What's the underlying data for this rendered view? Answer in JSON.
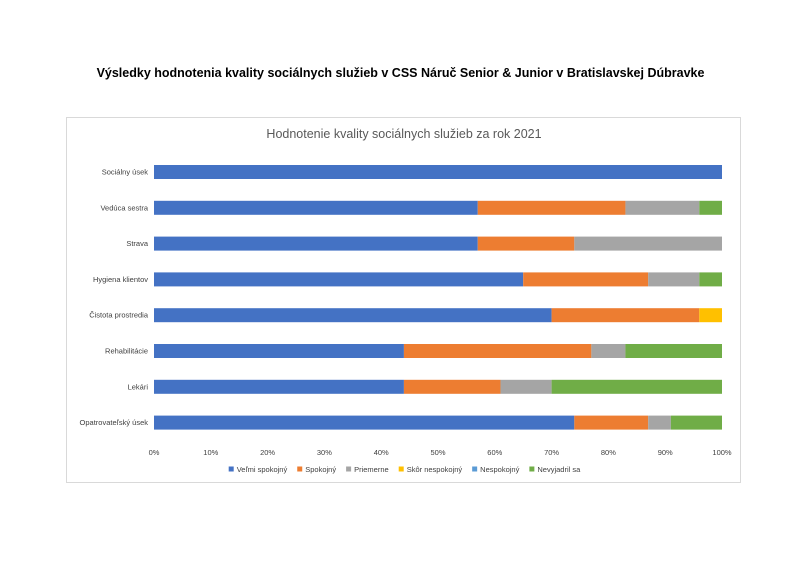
{
  "page": {
    "title": "Výsledky hodnotenia kvality sociálnych služieb v CSS Náruč Senior & Junior v Bratislavskej Dúbravke"
  },
  "colors": {
    "Veľmi spokojný": "#4472c4",
    "Spokojný": "#ed7d31",
    "Priemerne": "#a5a5a5",
    "Skôr nespokojný": "#ffc000",
    "Nespokojný": "#5b9bd5",
    "Nevyjadril sa": "#70ad47"
  },
  "chart_data": {
    "type": "bar",
    "orientation": "horizontal",
    "stacked": "percent",
    "title": "Hodnotenie kvality sociálnych služieb za rok 2021",
    "categories": [
      "Sociálny úsek",
      "Vedúca sestra",
      "Strava",
      "Hygiena klientov",
      "Čistota prostredia",
      "Rehabilitácie",
      "Lekári",
      "Opatrovateľský úsek"
    ],
    "series": [
      {
        "name": "Veľmi spokojný",
        "values": [
          100,
          57,
          57,
          65,
          70,
          44,
          44,
          74
        ]
      },
      {
        "name": "Spokojný",
        "values": [
          0,
          26,
          17,
          22,
          26,
          33,
          17,
          13
        ]
      },
      {
        "name": "Priemerne",
        "values": [
          0,
          13,
          26,
          9,
          0,
          6,
          9,
          4
        ]
      },
      {
        "name": "Skôr nespokojný",
        "values": [
          0,
          0,
          0,
          0,
          4,
          0,
          0,
          0
        ]
      },
      {
        "name": "Nespokojný",
        "values": [
          0,
          0,
          0,
          0,
          0,
          0,
          0,
          0
        ]
      },
      {
        "name": "Nevyjadril sa",
        "values": [
          0,
          4,
          0,
          4,
          0,
          17,
          30,
          9
        ]
      }
    ],
    "x_ticks": [
      "0%",
      "10%",
      "20%",
      "30%",
      "40%",
      "50%",
      "60%",
      "70%",
      "80%",
      "90%",
      "100%"
    ],
    "xlim": [
      0,
      100
    ],
    "grid": false,
    "legend_position": "bottom"
  }
}
